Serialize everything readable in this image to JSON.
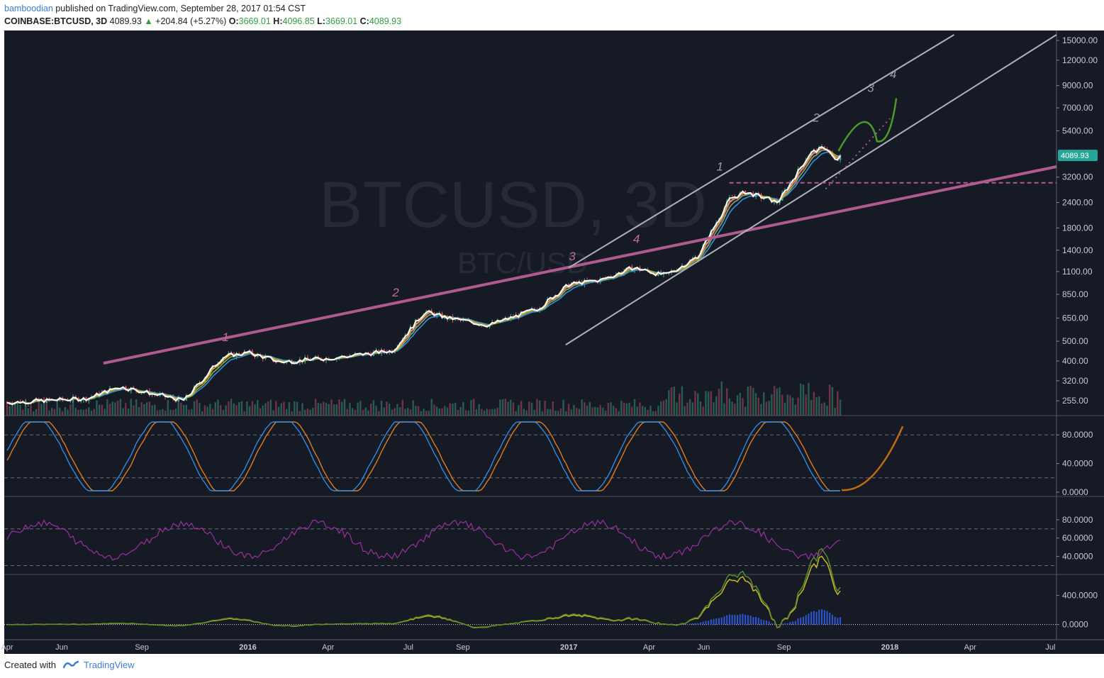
{
  "header": {
    "author": "bamboodian",
    "published_text": "published on TradingView.com, September 28, 2017 01:54 CST",
    "symbol": "COINBASE:BTCUSD, 3D",
    "last": "4089.93",
    "change": "+204.84 (+5.27%)",
    "o_label": "O:",
    "o_val": "3669.01",
    "h_label": "H:",
    "h_val": "4096.85",
    "l_label": "L:",
    "l_val": "3669.01",
    "c_label": "C:",
    "c_val": "4089.93"
  },
  "footer": {
    "created_with": "Created with",
    "brand": "TradingView"
  },
  "colors": {
    "background": "#161a25",
    "price_badge": "#26a69a",
    "trendline_pink": "#b05a8f",
    "channel": "#b0b0b8",
    "ema_white": "#ffffff",
    "ema_orange": "#f5a623",
    "ema_green": "#7fb04a",
    "ema_blue": "#3a8fd9",
    "ema_purple": "#9b30ff",
    "stoch_k": "#2f8ae0",
    "stoch_d": "#e07b1a",
    "rsi": "#9a2fa0"
  },
  "chart_data": [
    {
      "type": "line",
      "panel": "price",
      "watermark_main": "BTCUSD, 3D",
      "watermark_sub": "BTC/USD",
      "scale": "log",
      "ylim": [
        230,
        16000
      ],
      "y_ticks": [
        "15000.00",
        "12000.00",
        "9000.00",
        "7000.00",
        "5400.00",
        "4089.93",
        "3200.00",
        "2400.00",
        "1800.00",
        "1400.00",
        "1100.00",
        "850.00",
        "650.00",
        "500.00",
        "400.00",
        "320.00",
        "255.00"
      ],
      "x_ticks": [
        "Apr",
        "Jun",
        "Sep",
        "2016",
        "Apr",
        "Jul",
        "Sep",
        "2017",
        "Apr",
        "Jun",
        "Sep",
        "2018",
        "Apr",
        "Jul"
      ],
      "last_price": "4089.93",
      "wave_labels_pink": [
        "1",
        "2",
        "3",
        "4"
      ],
      "wave_labels_gray": [
        "1",
        "2",
        "3",
        "4"
      ],
      "series": [
        {
          "name": "",
          "values": [
            [
              2015.25,
              250
            ],
            [
              2015.5,
              262
            ],
            [
              2015.6,
              300
            ],
            [
              2015.8,
              255
            ],
            [
              2015.92,
              420
            ],
            [
              2016.0,
              440
            ],
            [
              2016.1,
              395
            ],
            [
              2016.3,
              420
            ],
            [
              2016.45,
              450
            ],
            [
              2016.55,
              700
            ],
            [
              2016.62,
              650
            ],
            [
              2016.75,
              600
            ],
            [
              2016.9,
              720
            ],
            [
              2017.0,
              950
            ],
            [
              2017.1,
              1000
            ],
            [
              2017.2,
              1150
            ],
            [
              2017.3,
              1050
            ],
            [
              2017.4,
              1300
            ],
            [
              2017.5,
              2500
            ],
            [
              2017.55,
              2700
            ],
            [
              2017.65,
              2400
            ],
            [
              2017.75,
              4200
            ],
            [
              2017.8,
              4500
            ],
            [
              2017.83,
              3800
            ],
            [
              2017.85,
              4090
            ]
          ]
        }
      ]
    },
    {
      "type": "line",
      "panel": "stochastic",
      "ylim": [
        0,
        100
      ],
      "y_ticks": [
        "80.0000",
        "40.0000",
        "0.0000"
      ],
      "levels": [
        80,
        20
      ]
    },
    {
      "type": "line",
      "panel": "rsi",
      "ylim": [
        25,
        100
      ],
      "y_ticks": [
        "80.0000",
        "60.0000",
        "40.0000"
      ],
      "levels": [
        70,
        30
      ]
    },
    {
      "type": "line",
      "panel": "macd",
      "ylim": [
        -150,
        620
      ],
      "y_ticks": [
        "400.0000",
        "0.0000"
      ]
    }
  ]
}
